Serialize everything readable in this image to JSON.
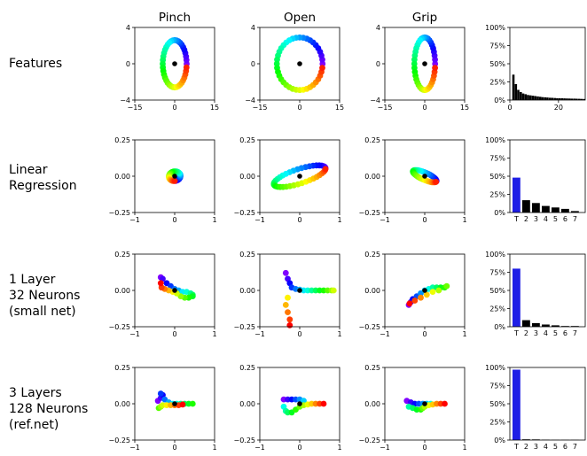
{
  "columns": [
    "Pinch",
    "Open",
    "Grip"
  ],
  "rows": [
    {
      "label": [
        "Features"
      ]
    },
    {
      "label": [
        "Linear",
        "Regression"
      ]
    },
    {
      "label": [
        "1 Layer",
        "32 Neurons",
        "(small net)"
      ]
    },
    {
      "label": [
        "3 Layers",
        "128 Neurons",
        "(ref.net)"
      ]
    }
  ],
  "colors": {
    "bar_T": "#1e1ee6",
    "bar_other": "#000000",
    "center_dot": "#000000",
    "frame": "#000000"
  },
  "chart_data": [
    {
      "type": "scatter",
      "row": "Features",
      "xlim": [
        -15,
        15
      ],
      "ylim": [
        -4,
        4
      ],
      "xticks": [
        "−15",
        "0",
        "15"
      ],
      "yticks": [
        "4",
        "0",
        "−4"
      ],
      "panels": [
        {
          "column": "Pinch",
          "shape": "ellipse",
          "center": [
            0,
            0
          ],
          "semi_axes": [
            4.5,
            2.6
          ],
          "rotation_deg": 0
        },
        {
          "column": "Open",
          "shape": "ellipse",
          "center": [
            0,
            0
          ],
          "semi_axes": [
            8.6,
            2.9
          ],
          "rotation_deg": 0
        },
        {
          "column": "Grip",
          "shape": "ellipse",
          "center": [
            0,
            0
          ],
          "semi_axes": [
            3.9,
            2.9
          ],
          "rotation_deg": 0
        }
      ]
    },
    {
      "type": "bar",
      "row": "Features",
      "ylim": [
        0,
        100
      ],
      "yticks": [
        "100%",
        "75%",
        "50%",
        "25%",
        "0%"
      ],
      "xticks": [
        "0",
        "20"
      ],
      "xlim": [
        0,
        31
      ],
      "values": [
        35,
        22,
        14,
        11,
        9,
        8,
        7,
        6.5,
        6,
        5.5,
        5,
        4.5,
        4,
        3.8,
        3.5,
        3.2,
        3,
        2.8,
        2.6,
        2.5,
        2.4,
        2.3,
        2.2,
        2.1,
        2,
        1.9,
        1.8,
        1.7,
        1.6,
        1.5
      ]
    },
    {
      "type": "scatter",
      "row": "Linear Regression",
      "xlim": [
        -1,
        1
      ],
      "ylim": [
        -0.25,
        0.25
      ],
      "xticks": [
        "−1",
        "0",
        "1"
      ],
      "yticks": [
        "0.25",
        "0.00",
        "−0.25"
      ],
      "panels": [
        {
          "column": "Pinch",
          "shape": "ellipse",
          "center": [
            0,
            0
          ],
          "semi_axes": [
            0.12,
            0.04
          ],
          "rotation_deg": -78
        },
        {
          "column": "Open",
          "shape": "ellipse",
          "center": [
            0,
            0
          ],
          "semi_axes": [
            0.68,
            0.05
          ],
          "rotation_deg": 18
        },
        {
          "column": "Grip",
          "shape": "ellipse",
          "center": [
            0,
            0
          ],
          "semi_axes": [
            0.32,
            0.025
          ],
          "rotation_deg": -24
        }
      ]
    },
    {
      "type": "bar",
      "row": "Linear Regression",
      "ylim": [
        0,
        100
      ],
      "yticks": [
        "100%",
        "75%",
        "50%",
        "25%",
        "0%"
      ],
      "categories": [
        "T",
        "2",
        "3",
        "4",
        "5",
        "6",
        "7"
      ],
      "values": [
        48,
        17,
        13,
        9,
        7,
        5,
        2
      ]
    },
    {
      "type": "scatter",
      "row": "1 Layer 32 Neurons (small net)",
      "xlim": [
        -1,
        1
      ],
      "ylim": [
        -0.25,
        0.25
      ],
      "xticks": [
        "−1",
        "0",
        "1"
      ],
      "yticks": [
        "0.25",
        "0.00",
        "−0.25"
      ],
      "panels": [
        {
          "column": "Pinch",
          "shape": "path",
          "points": [
            [
              -0.35,
              0.09
            ],
            [
              -0.3,
              0.08
            ],
            [
              -0.2,
              0.05
            ],
            [
              -0.1,
              0.03
            ],
            [
              0.0,
              0.01
            ],
            [
              0.1,
              0.0
            ],
            [
              0.2,
              -0.01
            ],
            [
              0.3,
              -0.01
            ],
            [
              0.4,
              -0.02
            ],
            [
              0.45,
              -0.03
            ],
            [
              0.45,
              -0.04
            ],
            [
              0.35,
              -0.05
            ],
            [
              0.25,
              -0.05
            ],
            [
              0.15,
              -0.04
            ],
            [
              0.05,
              -0.02
            ],
            [
              -0.05,
              -0.01
            ],
            [
              -0.15,
              0.0
            ],
            [
              -0.25,
              0.01
            ],
            [
              -0.33,
              0.02
            ],
            [
              -0.35,
              0.05
            ]
          ]
        },
        {
          "column": "Open",
          "shape": "path",
          "points": [
            [
              -0.35,
              0.12
            ],
            [
              -0.3,
              0.08
            ],
            [
              -0.25,
              0.05
            ],
            [
              -0.2,
              0.02
            ],
            [
              -0.1,
              0.01
            ],
            [
              0.0,
              0.005
            ],
            [
              0.1,
              0.0
            ],
            [
              0.2,
              0.0
            ],
            [
              0.3,
              0.0
            ],
            [
              0.4,
              0.0
            ],
            [
              0.5,
              0.0
            ],
            [
              0.6,
              0.0
            ],
            [
              0.7,
              0.0
            ],
            [
              0.8,
              0.0
            ],
            [
              0.85,
              0.0
            ],
            [
              -0.3,
              -0.05
            ],
            [
              -0.35,
              -0.1
            ],
            [
              -0.3,
              -0.15
            ],
            [
              -0.25,
              -0.2
            ],
            [
              -0.25,
              -0.24
            ]
          ]
        },
        {
          "column": "Grip",
          "shape": "path",
          "points": [
            [
              -0.4,
              -0.1
            ],
            [
              -0.35,
              -0.08
            ],
            [
              -0.3,
              -0.06
            ],
            [
              -0.2,
              -0.04
            ],
            [
              -0.1,
              -0.02
            ],
            [
              0.0,
              0.0
            ],
            [
              0.1,
              0.01
            ],
            [
              0.2,
              0.02
            ],
            [
              0.3,
              0.02
            ],
            [
              0.4,
              0.02
            ],
            [
              0.5,
              0.02
            ],
            [
              0.55,
              0.03
            ],
            [
              0.35,
              0.0
            ],
            [
              0.2,
              -0.01
            ],
            [
              0.05,
              -0.03
            ],
            [
              -0.1,
              -0.05
            ],
            [
              -0.25,
              -0.07
            ],
            [
              -0.38,
              -0.09
            ]
          ]
        }
      ]
    },
    {
      "type": "bar",
      "row": "1 Layer 32 Neurons (small net)",
      "ylim": [
        0,
        100
      ],
      "yticks": [
        "100%",
        "75%",
        "50%",
        "25%",
        "0%"
      ],
      "categories": [
        "T",
        "2",
        "3",
        "4",
        "5",
        "6",
        "7"
      ],
      "values": [
        80,
        9,
        5,
        3,
        2,
        1,
        1
      ]
    },
    {
      "type": "scatter",
      "row": "3 Layers 128 Neurons (ref.net)",
      "xlim": [
        -1,
        1
      ],
      "ylim": [
        -0.25,
        0.25
      ],
      "xticks": [
        "−1",
        "0",
        "1"
      ],
      "yticks": [
        "0.25",
        "0.00",
        "−0.25"
      ],
      "panels": [
        {
          "column": "Pinch",
          "shape": "path",
          "points": [
            [
              -0.42,
              0.02
            ],
            [
              -0.35,
              0.04
            ],
            [
              -0.3,
              0.06
            ],
            [
              -0.35,
              0.07
            ],
            [
              -0.25,
              0.03
            ],
            [
              -0.15,
              0.01
            ],
            [
              -0.05,
              0.0
            ],
            [
              0.05,
              0.0
            ],
            [
              0.15,
              0.0
            ],
            [
              0.25,
              0.0
            ],
            [
              0.35,
              0.0
            ],
            [
              0.45,
              0.0
            ],
            [
              -0.4,
              -0.03
            ],
            [
              -0.35,
              -0.02
            ],
            [
              -0.3,
              -0.01
            ],
            [
              -0.2,
              -0.01
            ],
            [
              -0.1,
              -0.01
            ],
            [
              0.0,
              -0.01
            ],
            [
              0.1,
              -0.01
            ],
            [
              0.2,
              -0.005
            ]
          ]
        },
        {
          "column": "Open",
          "shape": "path",
          "points": [
            [
              -0.4,
              0.03
            ],
            [
              -0.3,
              0.03
            ],
            [
              -0.2,
              0.03
            ],
            [
              -0.1,
              0.03
            ],
            [
              0.0,
              0.03
            ],
            [
              0.1,
              0.02
            ],
            [
              -0.4,
              -0.02
            ],
            [
              -0.35,
              -0.05
            ],
            [
              -0.3,
              -0.06
            ],
            [
              -0.2,
              -0.06
            ],
            [
              -0.1,
              -0.04
            ],
            [
              0.0,
              -0.02
            ],
            [
              0.1,
              -0.01
            ],
            [
              0.2,
              -0.005
            ],
            [
              0.3,
              0.0
            ],
            [
              0.4,
              0.0
            ],
            [
              0.5,
              0.0
            ],
            [
              0.6,
              0.0
            ]
          ]
        },
        {
          "column": "Grip",
          "shape": "path",
          "points": [
            [
              -0.45,
              0.02
            ],
            [
              -0.35,
              0.01
            ],
            [
              -0.25,
              0.0
            ],
            [
              -0.15,
              0.0
            ],
            [
              -0.05,
              0.0
            ],
            [
              0.05,
              0.0
            ],
            [
              0.15,
              0.0
            ],
            [
              -0.4,
              -0.02
            ],
            [
              -0.3,
              -0.03
            ],
            [
              -0.2,
              -0.04
            ],
            [
              -0.1,
              -0.04
            ],
            [
              -0.05,
              -0.03
            ],
            [
              0.0,
              -0.02
            ],
            [
              0.1,
              -0.01
            ],
            [
              0.2,
              -0.005
            ],
            [
              0.3,
              0.0
            ],
            [
              0.4,
              0.0
            ],
            [
              0.5,
              0.0
            ]
          ]
        }
      ]
    },
    {
      "type": "bar",
      "row": "3 Layers 128 Neurons (ref.net)",
      "ylim": [
        0,
        100
      ],
      "yticks": [
        "100%",
        "75%",
        "50%",
        "25%",
        "0%"
      ],
      "categories": [
        "T",
        "2",
        "3",
        "4",
        "5",
        "6",
        "7"
      ],
      "values": [
        97,
        1,
        0.8,
        0.5,
        0.3,
        0.2,
        0.2
      ]
    }
  ]
}
